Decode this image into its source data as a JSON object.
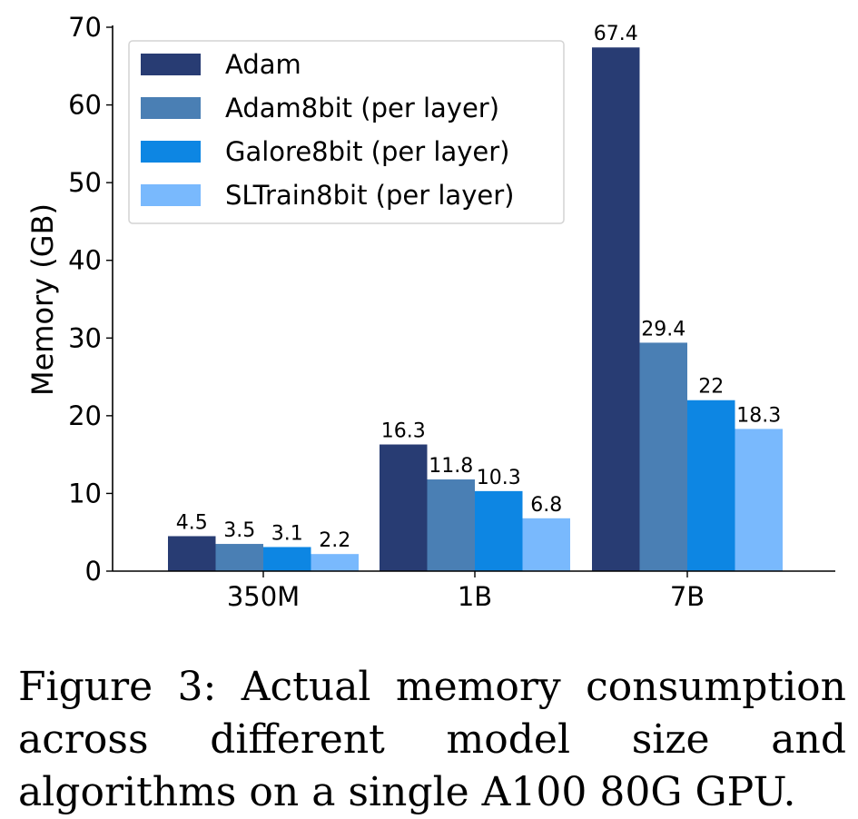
{
  "caption": {
    "text": "Figure 3:  Actual memory consumption across different model size and algorithms on a single A100 80G GPU."
  },
  "chart_data": {
    "type": "bar",
    "categories": [
      "350M",
      "1B",
      "7B"
    ],
    "ylabel": "Memory (GB)",
    "xlabel": "",
    "ylim": [
      0,
      70
    ],
    "yticks": [
      0,
      10,
      20,
      30,
      40,
      50,
      60,
      70
    ],
    "legend_position": "top-left",
    "grid": false,
    "series": [
      {
        "name": "Adam",
        "color": "#283c73",
        "values": [
          4.5,
          16.3,
          67.4
        ],
        "labels": [
          "4.5",
          "16.3",
          "67.4"
        ]
      },
      {
        "name": "Adam8bit (per layer)",
        "color": "#4a7fb4",
        "values": [
          3.5,
          11.8,
          29.4
        ],
        "labels": [
          "3.5",
          "11.8",
          "29.4"
        ]
      },
      {
        "name": "Galore8bit (per layer)",
        "color": "#0d86e3",
        "values": [
          3.1,
          10.3,
          22
        ],
        "labels": [
          "3.1",
          "10.3",
          "22"
        ]
      },
      {
        "name": "SLTrain8bit (per layer)",
        "color": "#79b9fd",
        "values": [
          2.2,
          6.8,
          18.3
        ],
        "labels": [
          "2.2",
          "6.8",
          "18.3"
        ]
      }
    ]
  }
}
